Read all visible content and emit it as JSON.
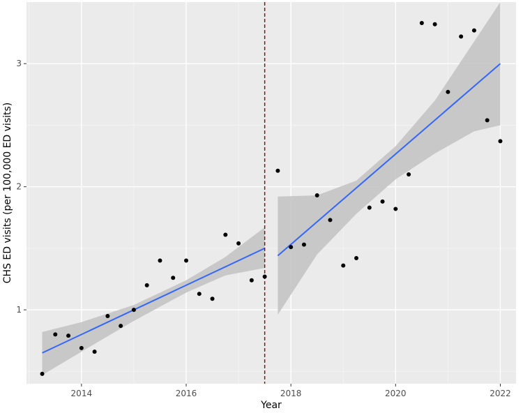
{
  "chart_data": {
    "type": "scatter",
    "xlabel": "Year",
    "ylabel": "CHS ED visits (per 100,000 ED visits)",
    "xlim": [
      2012.95,
      2022.3
    ],
    "ylim": [
      0.4,
      3.5
    ],
    "x_ticks": [
      {
        "value": 2014,
        "label": "2014"
      },
      {
        "value": 2016,
        "label": "2016"
      },
      {
        "value": 2018,
        "label": "2018"
      },
      {
        "value": 2020,
        "label": "2020"
      },
      {
        "value": 2022,
        "label": "2022"
      }
    ],
    "y_ticks": [
      {
        "value": 1,
        "label": "1"
      },
      {
        "value": 2,
        "label": "2"
      },
      {
        "value": 3,
        "label": "3"
      }
    ],
    "grid": true,
    "background_color": "#ebebeb",
    "point_color": "#000000",
    "fit_color": "#3366ff",
    "band_color": "#c4c4c4",
    "cut_line": {
      "x": 2017.5,
      "color": "#8b0000",
      "style": "dashed"
    },
    "points": [
      {
        "x": 2013.25,
        "y": 0.48
      },
      {
        "x": 2013.5,
        "y": 0.8
      },
      {
        "x": 2013.75,
        "y": 0.79
      },
      {
        "x": 2014.0,
        "y": 0.69
      },
      {
        "x": 2014.25,
        "y": 0.66
      },
      {
        "x": 2014.5,
        "y": 0.95
      },
      {
        "x": 2014.75,
        "y": 0.87
      },
      {
        "x": 2015.0,
        "y": 1.0
      },
      {
        "x": 2015.25,
        "y": 1.2
      },
      {
        "x": 2015.5,
        "y": 1.4
      },
      {
        "x": 2015.75,
        "y": 1.26
      },
      {
        "x": 2016.0,
        "y": 1.4
      },
      {
        "x": 2016.25,
        "y": 1.13
      },
      {
        "x": 2016.5,
        "y": 1.09
      },
      {
        "x": 2016.75,
        "y": 1.61
      },
      {
        "x": 2017.0,
        "y": 1.54
      },
      {
        "x": 2017.25,
        "y": 1.24
      },
      {
        "x": 2017.5,
        "y": 1.27
      },
      {
        "x": 2017.75,
        "y": 2.13
      },
      {
        "x": 2018.0,
        "y": 1.51
      },
      {
        "x": 2018.25,
        "y": 1.53
      },
      {
        "x": 2018.5,
        "y": 1.93
      },
      {
        "x": 2018.75,
        "y": 1.73
      },
      {
        "x": 2019.0,
        "y": 1.36
      },
      {
        "x": 2019.25,
        "y": 1.42
      },
      {
        "x": 2019.5,
        "y": 1.83
      },
      {
        "x": 2019.75,
        "y": 1.88
      },
      {
        "x": 2020.0,
        "y": 1.82
      },
      {
        "x": 2020.25,
        "y": 2.1
      },
      {
        "x": 2020.5,
        "y": 3.33
      },
      {
        "x": 2020.75,
        "y": 3.32
      },
      {
        "x": 2021.0,
        "y": 2.77
      },
      {
        "x": 2021.25,
        "y": 3.22
      },
      {
        "x": 2021.5,
        "y": 3.27
      },
      {
        "x": 2021.75,
        "y": 2.54
      },
      {
        "x": 2022.0,
        "y": 2.37
      }
    ],
    "segments": [
      {
        "name": "",
        "fit": [
          {
            "x": 2013.25,
            "y": 0.65
          },
          {
            "x": 2017.5,
            "y": 1.5
          }
        ],
        "band_upper": [
          {
            "x": 2013.25,
            "y": 0.82
          },
          {
            "x": 2014.0,
            "y": 0.9
          },
          {
            "x": 2015.0,
            "y": 1.04
          },
          {
            "x": 2016.0,
            "y": 1.24
          },
          {
            "x": 2016.75,
            "y": 1.43
          },
          {
            "x": 2017.5,
            "y": 1.67
          }
        ],
        "band_lower": [
          {
            "x": 2013.25,
            "y": 0.47
          },
          {
            "x": 2014.0,
            "y": 0.66
          },
          {
            "x": 2015.0,
            "y": 0.91
          },
          {
            "x": 2016.0,
            "y": 1.14
          },
          {
            "x": 2016.75,
            "y": 1.28
          },
          {
            "x": 2017.5,
            "y": 1.34
          }
        ]
      },
      {
        "name": "",
        "fit": [
          {
            "x": 2017.75,
            "y": 1.44
          },
          {
            "x": 2022.0,
            "y": 3.0
          }
        ],
        "band_upper": [
          {
            "x": 2017.75,
            "y": 1.92
          },
          {
            "x": 2018.5,
            "y": 1.93
          },
          {
            "x": 2019.25,
            "y": 2.05
          },
          {
            "x": 2020.0,
            "y": 2.33
          },
          {
            "x": 2020.75,
            "y": 2.7
          },
          {
            "x": 2021.5,
            "y": 3.18
          },
          {
            "x": 2022.0,
            "y": 3.5
          }
        ],
        "band_lower": [
          {
            "x": 2017.75,
            "y": 0.96
          },
          {
            "x": 2018.5,
            "y": 1.45
          },
          {
            "x": 2019.25,
            "y": 1.78
          },
          {
            "x": 2020.0,
            "y": 2.06
          },
          {
            "x": 2020.75,
            "y": 2.27
          },
          {
            "x": 2021.5,
            "y": 2.45
          },
          {
            "x": 2022.0,
            "y": 2.5
          }
        ]
      }
    ]
  }
}
